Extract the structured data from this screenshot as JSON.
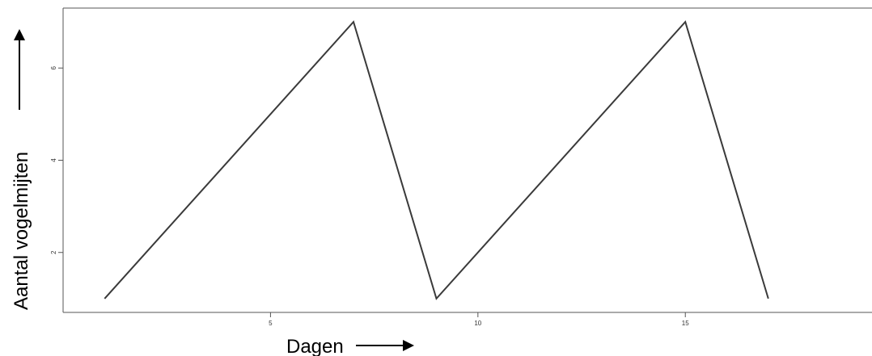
{
  "chart_data": {
    "type": "line",
    "xlabel": "Dagen",
    "ylabel": "Aantal vogelmijten",
    "xlim": [
      0,
      19.5
    ],
    "ylim": [
      0.7,
      7.3
    ],
    "x_ticks": [
      5,
      10,
      15
    ],
    "y_ticks": [
      2,
      4,
      6
    ],
    "grid": false,
    "series": [
      {
        "x": [
          1,
          7,
          9,
          15,
          17
        ],
        "y": [
          1,
          7,
          1,
          7,
          1
        ]
      }
    ]
  },
  "colors": {
    "line": "#3a3a3a",
    "axis": "#555555",
    "text": "#000000"
  }
}
